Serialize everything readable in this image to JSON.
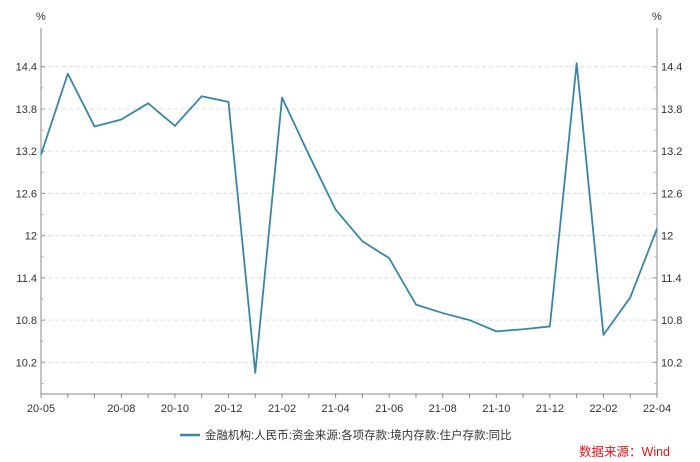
{
  "chart_data": {
    "type": "line",
    "x": [
      "20-05",
      "20-06",
      "20-07",
      "20-08",
      "20-09",
      "20-10",
      "20-11",
      "20-12",
      "21-01",
      "21-02",
      "21-03",
      "21-04",
      "21-05",
      "21-06",
      "21-07",
      "21-08",
      "21-09",
      "21-10",
      "21-11",
      "21-12",
      "22-01",
      "22-02",
      "22-03",
      "22-04"
    ],
    "x_tick_labels": [
      "20-05",
      "20-08",
      "20-10",
      "20-12",
      "21-02",
      "21-04",
      "21-06",
      "21-08",
      "21-10",
      "21-12",
      "22-02",
      "22-04"
    ],
    "series": [
      {
        "name": "金融机构:人民币:资金来源:各项存款:境内存款:住户存款:同比",
        "color": "#3a85a8",
        "values": [
          13.15,
          14.3,
          13.55,
          13.65,
          13.88,
          13.56,
          13.98,
          13.9,
          10.05,
          13.96,
          13.15,
          12.37,
          11.92,
          11.68,
          11.02,
          10.9,
          10.8,
          10.64,
          10.67,
          10.71,
          14.45,
          10.59,
          11.12,
          12.1
        ]
      }
    ],
    "y_ticks": [
      10.2,
      10.8,
      11.4,
      12,
      12.6,
      13.2,
      13.8,
      14.4
    ],
    "y_tick_labels": [
      "10.2",
      "10.8",
      "11.4",
      "12",
      "12.6",
      "13.2",
      "13.8",
      "14.4"
    ],
    "ylim": [
      9.75,
      14.95
    ],
    "ylabel_left": "%",
    "ylabel_right": "%",
    "grid": "horizontal dashed",
    "legend_position": "bottom-center",
    "source": "数据来源：Wind",
    "source_color": "#e0151b"
  }
}
